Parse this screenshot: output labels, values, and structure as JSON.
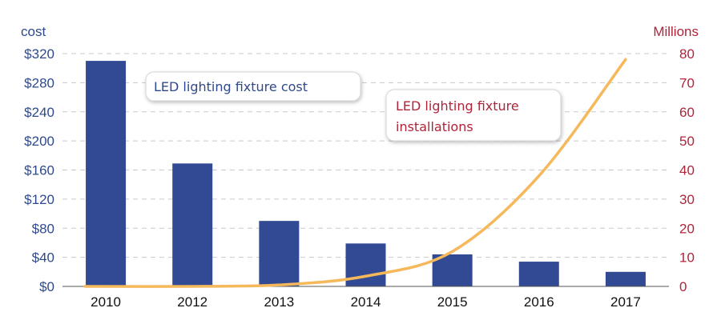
{
  "chart_data": {
    "type": "bar",
    "categories": [
      "2010",
      "2012",
      "2013",
      "2014",
      "2015",
      "2016",
      "2017"
    ],
    "series": [
      {
        "name": "LED lighting fixture cost",
        "type": "bar",
        "axis": "left",
        "color": "#324a94",
        "values": [
          310,
          169,
          90,
          59,
          44,
          34,
          20
        ]
      },
      {
        "name": "LED lighting fixture installations",
        "type": "line",
        "axis": "right",
        "color": "#f5b85a",
        "values": [
          0,
          0,
          0.5,
          3.5,
          12,
          38,
          78
        ]
      }
    ],
    "left_axis": {
      "title": "cost",
      "range": [
        0,
        320
      ],
      "ticks": [
        "$0",
        "$40",
        "$80",
        "$120",
        "$160",
        "$200",
        "$240",
        "$280",
        "$320"
      ],
      "color": "#2e4a8c"
    },
    "right_axis": {
      "title": "Millions",
      "range": [
        0,
        80
      ],
      "ticks": [
        "0",
        "10",
        "20",
        "30",
        "40",
        "50",
        "60",
        "70",
        "80"
      ],
      "color": "#b0243a"
    },
    "grid": "horizontal dashed",
    "annotations": {
      "cost_label": "LED lighting fixture cost",
      "installations_label_line1": "LED lighting fixture",
      "installations_label_line2": "installations"
    }
  }
}
